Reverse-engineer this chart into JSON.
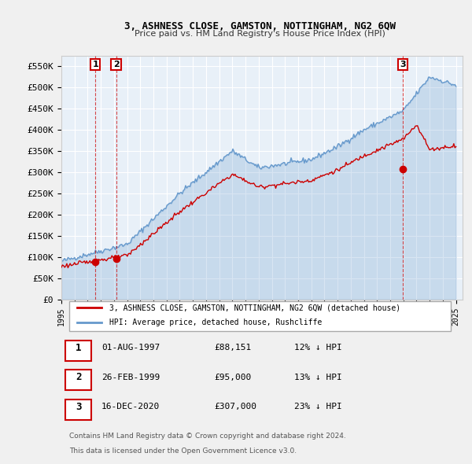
{
  "title": "3, ASHNESS CLOSE, GAMSTON, NOTTINGHAM, NG2 6QW",
  "subtitle": "Price paid vs. HM Land Registry's House Price Index (HPI)",
  "ylabel": "",
  "xlabel": "",
  "yticks": [
    0,
    50000,
    100000,
    150000,
    200000,
    250000,
    300000,
    350000,
    400000,
    450000,
    500000,
    550000
  ],
  "ytick_labels": [
    "£0",
    "£50K",
    "£100K",
    "£150K",
    "£200K",
    "£250K",
    "£300K",
    "£350K",
    "£400K",
    "£450K",
    "£500K",
    "£550K"
  ],
  "ylim": [
    0,
    575000
  ],
  "xlim_start": 1995.0,
  "xlim_end": 2025.5,
  "sale_dates": [
    1997.583,
    1999.16,
    2020.96
  ],
  "sale_prices": [
    88151,
    95000,
    307000
  ],
  "sale_labels": [
    "1",
    "2",
    "3"
  ],
  "sale_color": "#cc0000",
  "hpi_color": "#6699cc",
  "background_color": "#e8f0f8",
  "plot_bg_color": "#ffffff",
  "grid_color": "#ffffff",
  "legend_label_red": "3, ASHNESS CLOSE, GAMSTON, NOTTINGHAM, NG2 6QW (detached house)",
  "legend_label_blue": "HPI: Average price, detached house, Rushcliffe",
  "table_rows": [
    {
      "num": "1",
      "date": "01-AUG-1997",
      "price": "£88,151",
      "pct": "12% ↓ HPI"
    },
    {
      "num": "2",
      "date": "26-FEB-1999",
      "price": "£95,000",
      "pct": "13% ↓ HPI"
    },
    {
      "num": "3",
      "date": "16-DEC-2020",
      "price": "£307,000",
      "pct": "23% ↓ HPI"
    }
  ],
  "footnote1": "Contains HM Land Registry data © Crown copyright and database right 2024.",
  "footnote2": "This data is licensed under the Open Government Licence v3.0.",
  "xtick_years": [
    1995,
    1996,
    1997,
    1998,
    1999,
    2000,
    2001,
    2002,
    2003,
    2004,
    2005,
    2006,
    2007,
    2008,
    2009,
    2010,
    2011,
    2012,
    2013,
    2014,
    2015,
    2016,
    2017,
    2018,
    2019,
    2020,
    2021,
    2022,
    2023,
    2024,
    2025
  ]
}
